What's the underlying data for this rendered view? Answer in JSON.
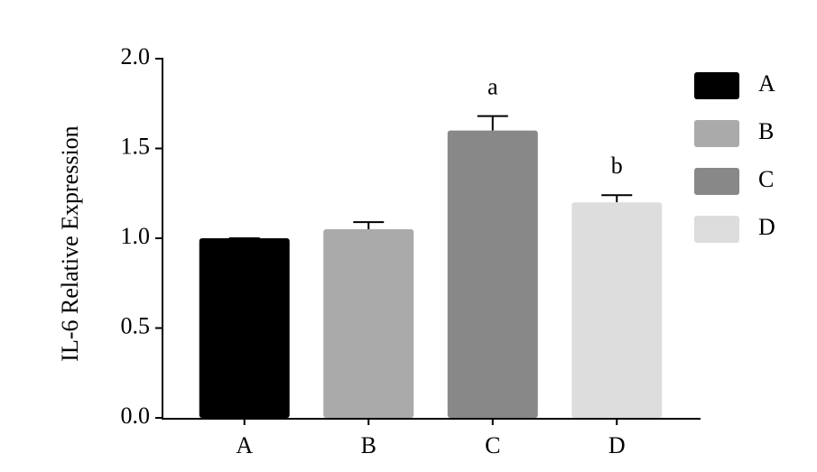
{
  "chart_data": {
    "type": "bar",
    "y_label": "IL-6 Relative Expression",
    "categories": [
      "A",
      "B",
      "C",
      "D"
    ],
    "values": [
      1.0,
      1.05,
      1.6,
      1.2
    ],
    "errors": [
      0,
      0.04,
      0.08,
      0.04
    ],
    "colors": [
      "#000000",
      "#aaaaaa",
      "#888888",
      "#dddddd"
    ],
    "annotations": [
      {
        "text": "a",
        "category": "C"
      },
      {
        "text": "b",
        "category": "D"
      }
    ],
    "ylim": [
      0,
      2.0
    ],
    "yticks": [
      {
        "value": 0,
        "label": "0.0"
      },
      0.5,
      {
        "value": 1,
        "label": "1.0"
      },
      1.5,
      {
        "value": 2,
        "label": "2.0"
      }
    ],
    "legend": "right"
  }
}
